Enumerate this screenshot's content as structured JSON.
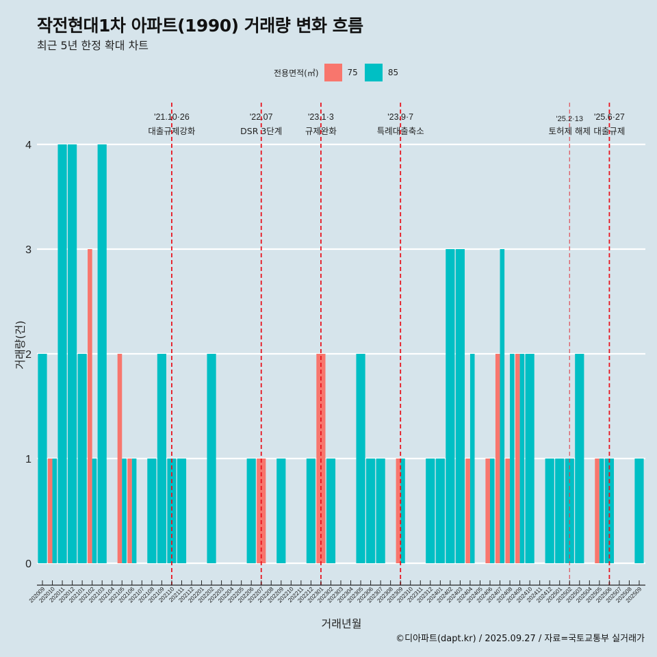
{
  "header": {
    "title": "작전현대1차 아파트(1990) 거래량 변화 흐름",
    "subtitle": "최근 5년 한정 확대 차트"
  },
  "legend": {
    "title": "전용면적(㎡)",
    "items": [
      {
        "label": "75",
        "color": "#F8766D"
      },
      {
        "label": "85",
        "color": "#00BFC4"
      }
    ]
  },
  "caption": "©디아파트(dapt.kr) / 2025.09.27 / 자료=국토교통부 실거래가",
  "chart_data": {
    "type": "bar",
    "title": "작전현대1차 아파트(1990) 거래량 변화 흐름",
    "subtitle": "최근 5년 한정 확대 차트",
    "xlabel": "거래년월",
    "ylabel": "거래량(건)",
    "ylim": [
      0,
      4
    ],
    "yticks": [
      "0",
      "1",
      "2",
      "3",
      "4"
    ],
    "grid": "horizontal",
    "legend_position": "top",
    "categories": [
      "202009",
      "202010",
      "202011",
      "202012",
      "202101",
      "202102",
      "202103",
      "202104",
      "202105",
      "202106",
      "202107",
      "202108",
      "202109",
      "202110",
      "202111",
      "202112",
      "202201",
      "202202",
      "202203",
      "202204",
      "202205",
      "202206",
      "202207",
      "202208",
      "202209",
      "202210",
      "202211",
      "202212",
      "202301",
      "202302",
      "202303",
      "202304",
      "202305",
      "202306",
      "202307",
      "202308",
      "202309",
      "202310",
      "202311",
      "202312",
      "202401",
      "202402",
      "202403",
      "202404",
      "202405",
      "202406",
      "202407",
      "202408",
      "202409",
      "202410",
      "202411",
      "202412",
      "202501",
      "202502",
      "202503",
      "202504",
      "202505",
      "202506",
      "202507",
      "202508",
      "202509"
    ],
    "series": [
      {
        "name": "75",
        "color": "#F8766D",
        "values": [
          0,
          1,
          0,
          0,
          0,
          3,
          0,
          0,
          2,
          1,
          0,
          0,
          0,
          0,
          0,
          0,
          0,
          0,
          0,
          0,
          0,
          0,
          1,
          0,
          0,
          0,
          0,
          0,
          2,
          0,
          0,
          0,
          0,
          0,
          0,
          0,
          1,
          0,
          0,
          0,
          0,
          0,
          0,
          1,
          0,
          1,
          2,
          1,
          2,
          0,
          0,
          0,
          0,
          0,
          0,
          0,
          1,
          0,
          0,
          0,
          0
        ]
      },
      {
        "name": "85",
        "color": "#00BFC4",
        "values": [
          2,
          1,
          4,
          4,
          2,
          1,
          4,
          0,
          1,
          1,
          0,
          1,
          2,
          1,
          1,
          0,
          0,
          2,
          0,
          0,
          0,
          1,
          0,
          0,
          1,
          0,
          0,
          1,
          0,
          1,
          0,
          0,
          2,
          1,
          1,
          0,
          1,
          0,
          0,
          1,
          1,
          3,
          3,
          2,
          0,
          1,
          3,
          2,
          2,
          2,
          0,
          1,
          1,
          1,
          2,
          0,
          1,
          1,
          0,
          0,
          1
        ]
      }
    ],
    "annotations": [
      {
        "month": "202110",
        "date": "'21.10·26",
        "label": "대출규제강화",
        "style": "dashed"
      },
      {
        "month": "202207",
        "date": "'22.07",
        "label": "DSR 3단계",
        "style": "dashed"
      },
      {
        "month": "202301",
        "date": "'23.1·3",
        "label": "규제완화",
        "style": "dashed"
      },
      {
        "month": "202309",
        "date": "'23.9·7",
        "label": "특례대출축소",
        "style": "dashed"
      },
      {
        "month": "202502",
        "date": "'25.2·13",
        "label": "토허제 해제",
        "style": "light-dashed"
      },
      {
        "month": "202506",
        "date": "'25.6·27",
        "label": "대출규제",
        "style": "dashed"
      }
    ]
  }
}
